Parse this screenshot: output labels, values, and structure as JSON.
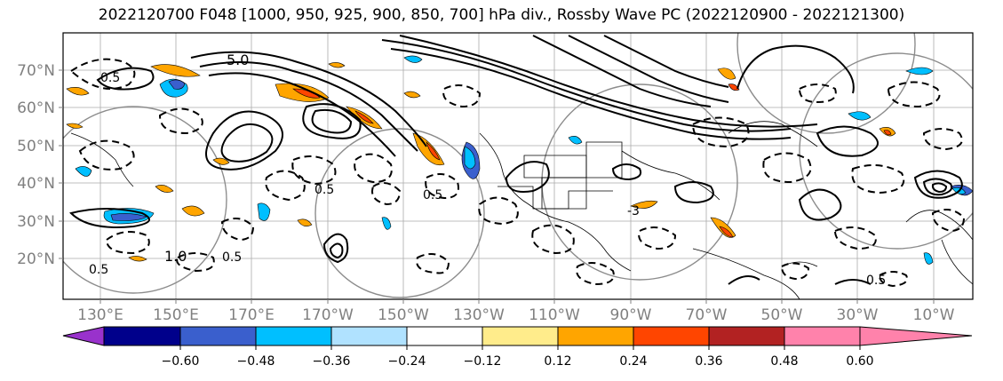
{
  "title": "2022120700 F048 [1000, 950, 925, 900, 850, 700] hPa div., Rossby Wave PC (2022120900 - 2022121300)",
  "map": {
    "lat_labels": [
      "70°N",
      "60°N",
      "50°N",
      "40°N",
      "30°N",
      "20°N"
    ],
    "lon_labels": [
      "130°E",
      "150°E",
      "170°E",
      "170°W",
      "150°W",
      "130°W",
      "110°W",
      "90°W",
      "70°W",
      "50°W",
      "30°W",
      "10°W"
    ],
    "contour_labels": [
      "5.0",
      "0.5",
      "0.5",
      "1.0",
      "0.5",
      "0.5",
      "0.5",
      "-3",
      "0.5"
    ]
  },
  "colorbar": {
    "tick_labels": [
      "−0.60",
      "−0.48",
      "−0.36",
      "−0.24",
      "−0.12",
      "0.12",
      "0.24",
      "0.36",
      "0.48",
      "0.60"
    ],
    "colors": [
      "#9932cc",
      "#00008b",
      "#3a5fcd",
      "#00bfff",
      "#b0e2ff",
      "#ffffff",
      "#ffec8b",
      "#ffa500",
      "#ff4500",
      "#b22222",
      "#ff82ab"
    ]
  }
}
